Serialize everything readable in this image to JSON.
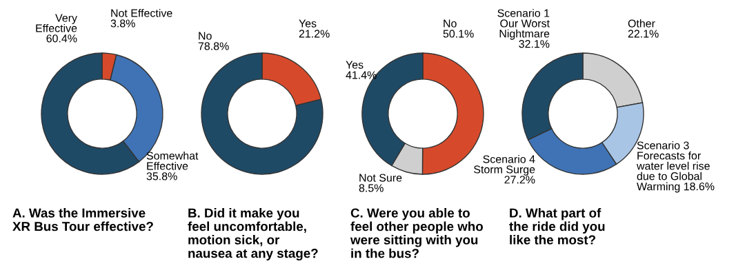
{
  "chart_data": [
    {
      "type": "donut",
      "title": "A. Was the Immersive\nXR Bus Tour effective?",
      "categories": [
        "Not Effective",
        "Somewhat\nEffective",
        "Very\nEffective"
      ],
      "values": [
        3.8,
        35.8,
        60.4
      ],
      "colors": [
        "#d64a2b",
        "#3f73b5",
        "#1f4a66"
      ],
      "value_labels": [
        "3.8%",
        "35.8%",
        "60.4%"
      ]
    },
    {
      "type": "donut",
      "title": "B. Did it make you\nfeel uncomfortable,\nmotion sick, or\nnausea at any stage?",
      "categories": [
        "Yes",
        "No"
      ],
      "values": [
        21.2,
        78.8
      ],
      "colors": [
        "#d64a2b",
        "#1f4a66"
      ],
      "value_labels": [
        "21.2%",
        "78.8%"
      ]
    },
    {
      "type": "donut",
      "title": "C. Were you able to\nfeel other people who\nwere sitting with you\nin the bus?",
      "categories": [
        "No",
        "Not Sure",
        "Yes"
      ],
      "values": [
        50.1,
        8.5,
        41.4
      ],
      "colors": [
        "#d64a2b",
        "#cfcfcf",
        "#1f4a66"
      ],
      "value_labels": [
        "50.1%",
        "8.5%",
        "41.4%"
      ]
    },
    {
      "type": "donut",
      "title": "D. What part of\nthe ride did you\nlike the most?",
      "categories": [
        "Other",
        "Scenario 3\nForecasts for\nwater level rise\ndue to Global\nWarming",
        "Scenario 4\nStorm Surge",
        "Scenario 1\nOur Worst\nNightmare"
      ],
      "values": [
        22.1,
        18.6,
        27.2,
        32.1
      ],
      "colors": [
        "#cfcfcf",
        "#a8c5e6",
        "#3f73b5",
        "#1f4a66"
      ],
      "value_labels": [
        "22.1%",
        "18.6%",
        "27.2%",
        "32.1%"
      ]
    }
  ]
}
